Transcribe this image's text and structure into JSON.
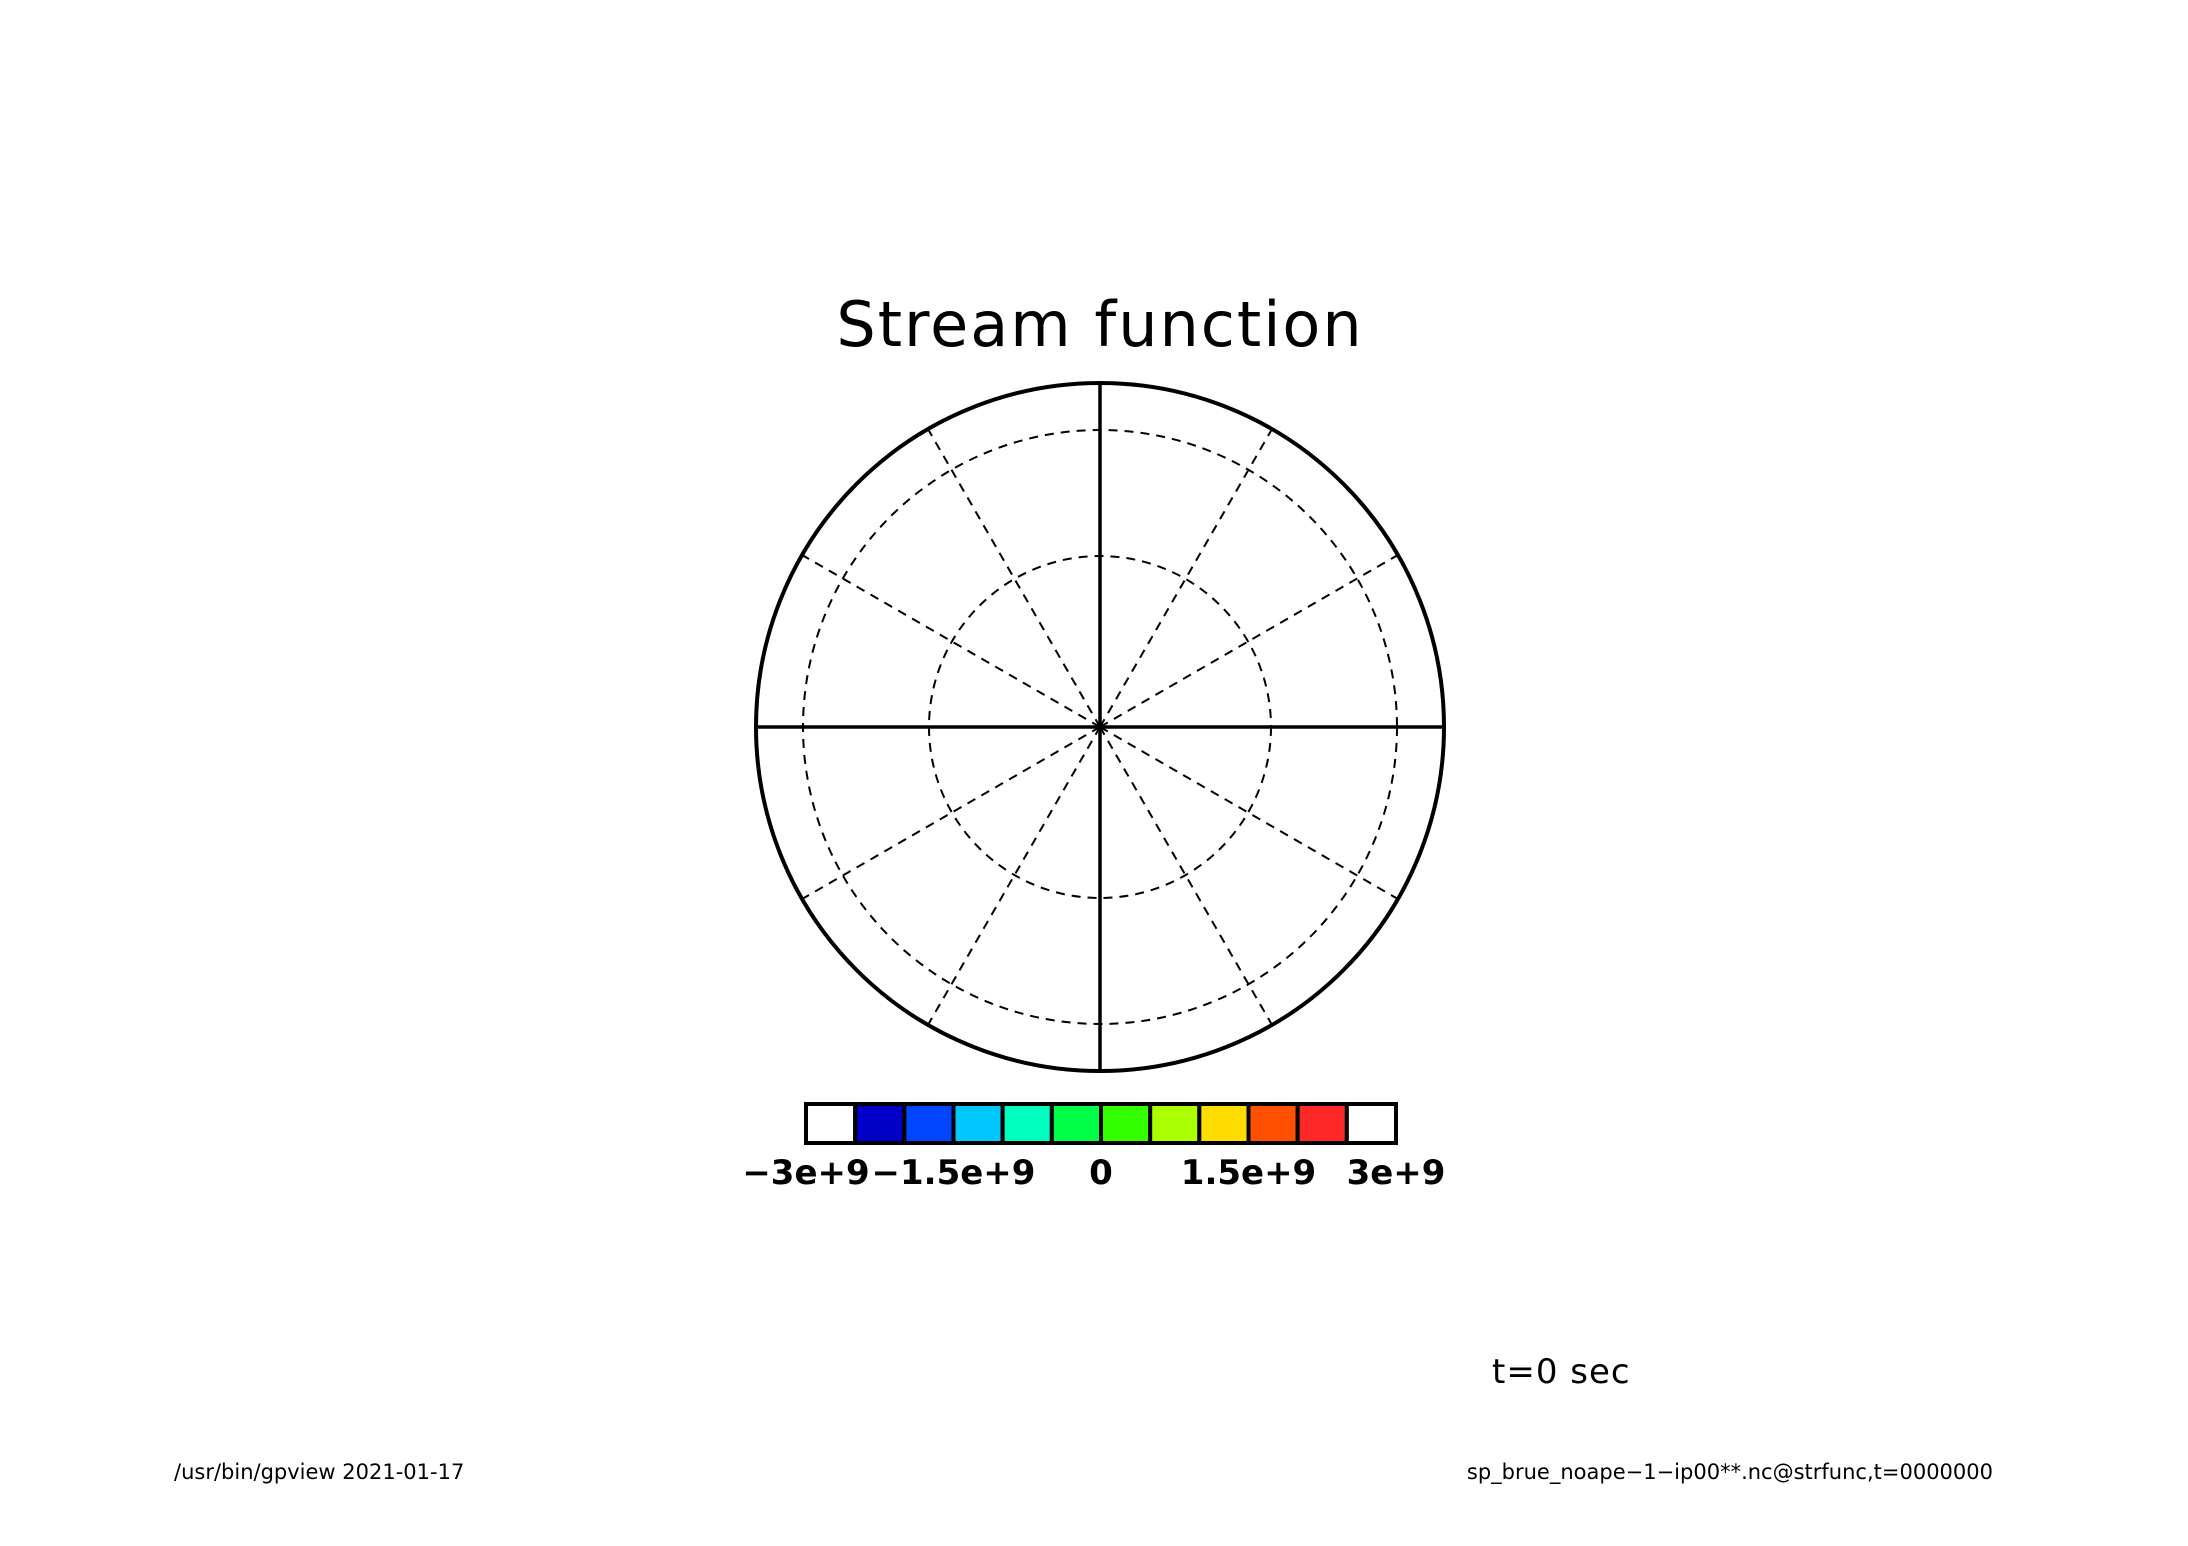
{
  "chart_data": {
    "type": "heatmap",
    "projection": "polar",
    "title": "Stream function",
    "annotation": "t=0 sec",
    "field_values": "no contours/shading visible (field uniform)",
    "grid": {
      "on": true,
      "latitude_circles": 2,
      "meridian_spacing_deg": 30
    },
    "colorbar": {
      "range": [
        -3000000000.0,
        3000000000.0
      ],
      "levels": [
        -3000000000.0,
        -2500000000.0,
        -2000000000.0,
        -1500000000.0,
        -1000000000.0,
        -500000000.0,
        0,
        500000000.0,
        1000000000.0,
        1500000000.0,
        2000000000.0,
        2500000000.0,
        3000000000.0
      ],
      "colors": [
        "#ffffff",
        "#0000c8",
        "#0046ff",
        "#00c8ff",
        "#00ffbe",
        "#00ff46",
        "#32ff00",
        "#aaff00",
        "#ffdc00",
        "#ff5000",
        "#ff2828",
        "#ffffff"
      ],
      "tick_labels": [
        {
          "value": -3000000000.0,
          "label": "−3e+9"
        },
        {
          "value": -1500000000.0,
          "label": "−1.5e+9"
        },
        {
          "value": 0,
          "label": "0"
        },
        {
          "value": 1500000000.0,
          "label": "1.5e+9"
        },
        {
          "value": 3000000000.0,
          "label": "3e+9"
        }
      ]
    }
  },
  "footer": {
    "left": "/usr/bin/gpview  2021-01-17",
    "right": "sp_brue_noape−1−ip00**.nc@strfunc,t=0000000"
  }
}
